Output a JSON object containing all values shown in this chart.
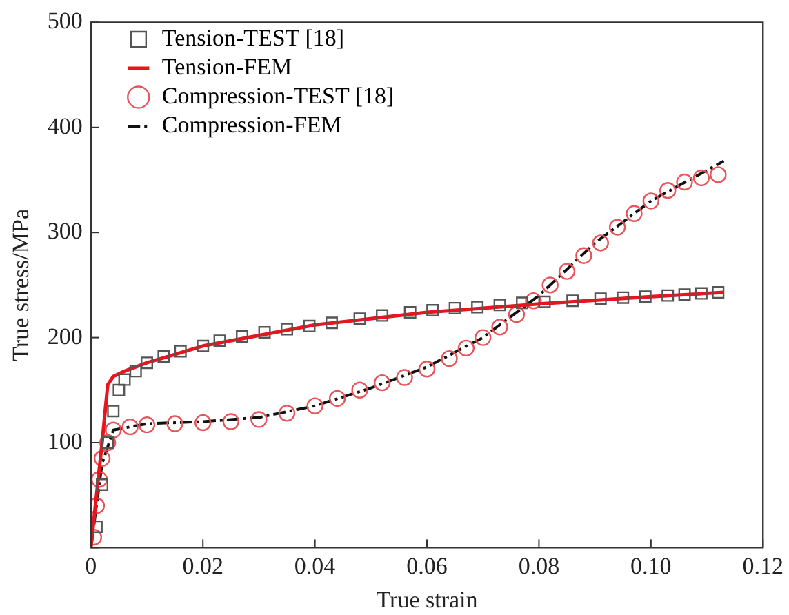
{
  "chart_data": {
    "type": "line",
    "xlabel": "True strain",
    "ylabel": "True stress/MPa",
    "xlim": [
      0,
      0.12
    ],
    "ylim": [
      0,
      500
    ],
    "xticks": [
      0,
      0.02,
      0.04,
      0.06,
      0.08,
      {
        "value": 0.1,
        "label": "0.10"
      },
      0.12
    ],
    "yticks": [
      {
        "value": 0,
        "label": null
      },
      100,
      200,
      300,
      400,
      500
    ],
    "grid": false,
    "legend": "top left",
    "series": [
      {
        "name": "Tension-TEST [18]",
        "type": "scatter",
        "marker": "square",
        "color": "#555555",
        "x": [
          0.001,
          0.002,
          0.003,
          0.004,
          0.005,
          0.006,
          0.008,
          0.01,
          0.013,
          0.016,
          0.02,
          0.023,
          0.027,
          0.031,
          0.035,
          0.039,
          0.043,
          0.048,
          0.052,
          0.057,
          0.061,
          0.065,
          0.069,
          0.073,
          0.077,
          0.081,
          0.086,
          0.091,
          0.095,
          0.099,
          0.103,
          0.106,
          0.109,
          0.112
        ],
        "values": [
          20,
          60,
          100,
          130,
          150,
          160,
          168,
          176,
          182,
          187,
          192,
          197,
          201,
          205,
          208,
          211,
          214,
          218,
          221,
          224,
          226,
          228,
          229,
          231,
          233,
          234,
          235,
          237,
          238,
          239,
          240,
          241,
          242,
          243
        ]
      },
      {
        "name": "Tension-FEM",
        "type": "line",
        "marker": "none",
        "line_style": "solid",
        "color": "#e8141e",
        "x": [
          0,
          0.002,
          0.003,
          0.004,
          0.006,
          0.01,
          0.02,
          0.04,
          0.06,
          0.08,
          0.1,
          0.113
        ],
        "values": [
          0,
          100,
          155,
          163,
          168,
          176,
          192,
          212,
          224,
          232,
          239,
          243
        ]
      },
      {
        "name": "Compression-TEST [18]",
        "type": "scatter",
        "marker": "circle",
        "color": "#e8545a",
        "x": [
          0.0005,
          0.001,
          0.0015,
          0.002,
          0.003,
          0.004,
          0.007,
          0.01,
          0.015,
          0.02,
          0.025,
          0.03,
          0.035,
          0.04,
          0.044,
          0.048,
          0.052,
          0.056,
          0.06,
          0.064,
          0.067,
          0.07,
          0.073,
          0.076,
          0.079,
          0.082,
          0.085,
          0.088,
          0.091,
          0.094,
          0.097,
          0.1,
          0.103,
          0.106,
          0.109,
          0.112
        ],
        "values": [
          10,
          40,
          65,
          85,
          100,
          112,
          115,
          117,
          118,
          119,
          120,
          122,
          128,
          135,
          142,
          150,
          157,
          162,
          170,
          180,
          190,
          200,
          210,
          222,
          235,
          250,
          263,
          278,
          290,
          305,
          318,
          330,
          340,
          348,
          352,
          355
        ]
      },
      {
        "name": "Compression-FEM",
        "type": "line",
        "marker": "none",
        "line_style": "dashdot",
        "color": "#111111",
        "x": [
          0,
          0.002,
          0.004,
          0.01,
          0.02,
          0.03,
          0.04,
          0.05,
          0.06,
          0.07,
          0.08,
          0.09,
          0.1,
          0.113
        ],
        "values": [
          0,
          80,
          112,
          118,
          120,
          124,
          135,
          152,
          172,
          200,
          240,
          290,
          330,
          368
        ]
      }
    ]
  }
}
